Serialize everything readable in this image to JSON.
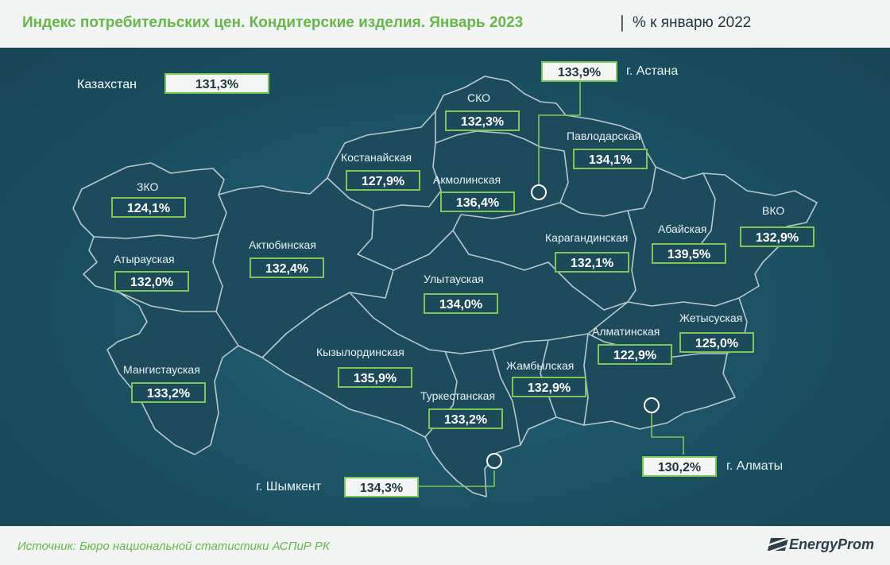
{
  "title": "Индекс потребительских цен. Кондитерские изделия. Январь 2023",
  "title_separator": "|",
  "unit": "% к январю 2022",
  "country": {
    "name": "Казахстан",
    "value": "131,3%"
  },
  "regions": {
    "zko": {
      "name": "ЗКО",
      "value": "124,1%"
    },
    "atyrau": {
      "name": "Атырауская",
      "value": "132,0%"
    },
    "mangistau": {
      "name": "Мангистауская",
      "value": "133,2%"
    },
    "aktobe": {
      "name": "Актюбинская",
      "value": "132,4%"
    },
    "kostanay": {
      "name": "Костанайская",
      "value": "127,9%"
    },
    "sko": {
      "name": "СКО",
      "value": "132,3%"
    },
    "akmola": {
      "name": "Акмолинская",
      "value": "136,4%"
    },
    "pavlodar": {
      "name": "Павлодарская",
      "value": "134,1%"
    },
    "karaganda": {
      "name": "Карагандинская",
      "value": "132,1%"
    },
    "ulytau": {
      "name": "Улытауская",
      "value": "134,0%"
    },
    "abay": {
      "name": "Абайская",
      "value": "139,5%"
    },
    "vko": {
      "name": "ВКО",
      "value": "132,9%"
    },
    "kyzylorda": {
      "name": "Кызылординская",
      "value": "135,9%"
    },
    "zhambyl": {
      "name": "Жамбылская",
      "value": "132,9%"
    },
    "turkestan": {
      "name": "Туркестанская",
      "value": "133,2%"
    },
    "almaty_region": {
      "name": "Алматинская",
      "value": "122,9%"
    },
    "zhetysu": {
      "name": "Жетысуская",
      "value": "125,0%"
    }
  },
  "cities": {
    "astana": {
      "name": "г. Астана",
      "value": "133,9%"
    },
    "almaty": {
      "name": "г. Алматы",
      "value": "130,2%"
    },
    "shymkent": {
      "name": "г. Шымкент",
      "value": "134,3%"
    }
  },
  "source": "Источник: Бюро национальной статистики АСПиР РК",
  "brand": "EnergyProm",
  "colors": {
    "accent": "#7cc758",
    "background": "#1b5263",
    "region_fill": "#1e4b5b",
    "border": "#b9c8cc"
  }
}
